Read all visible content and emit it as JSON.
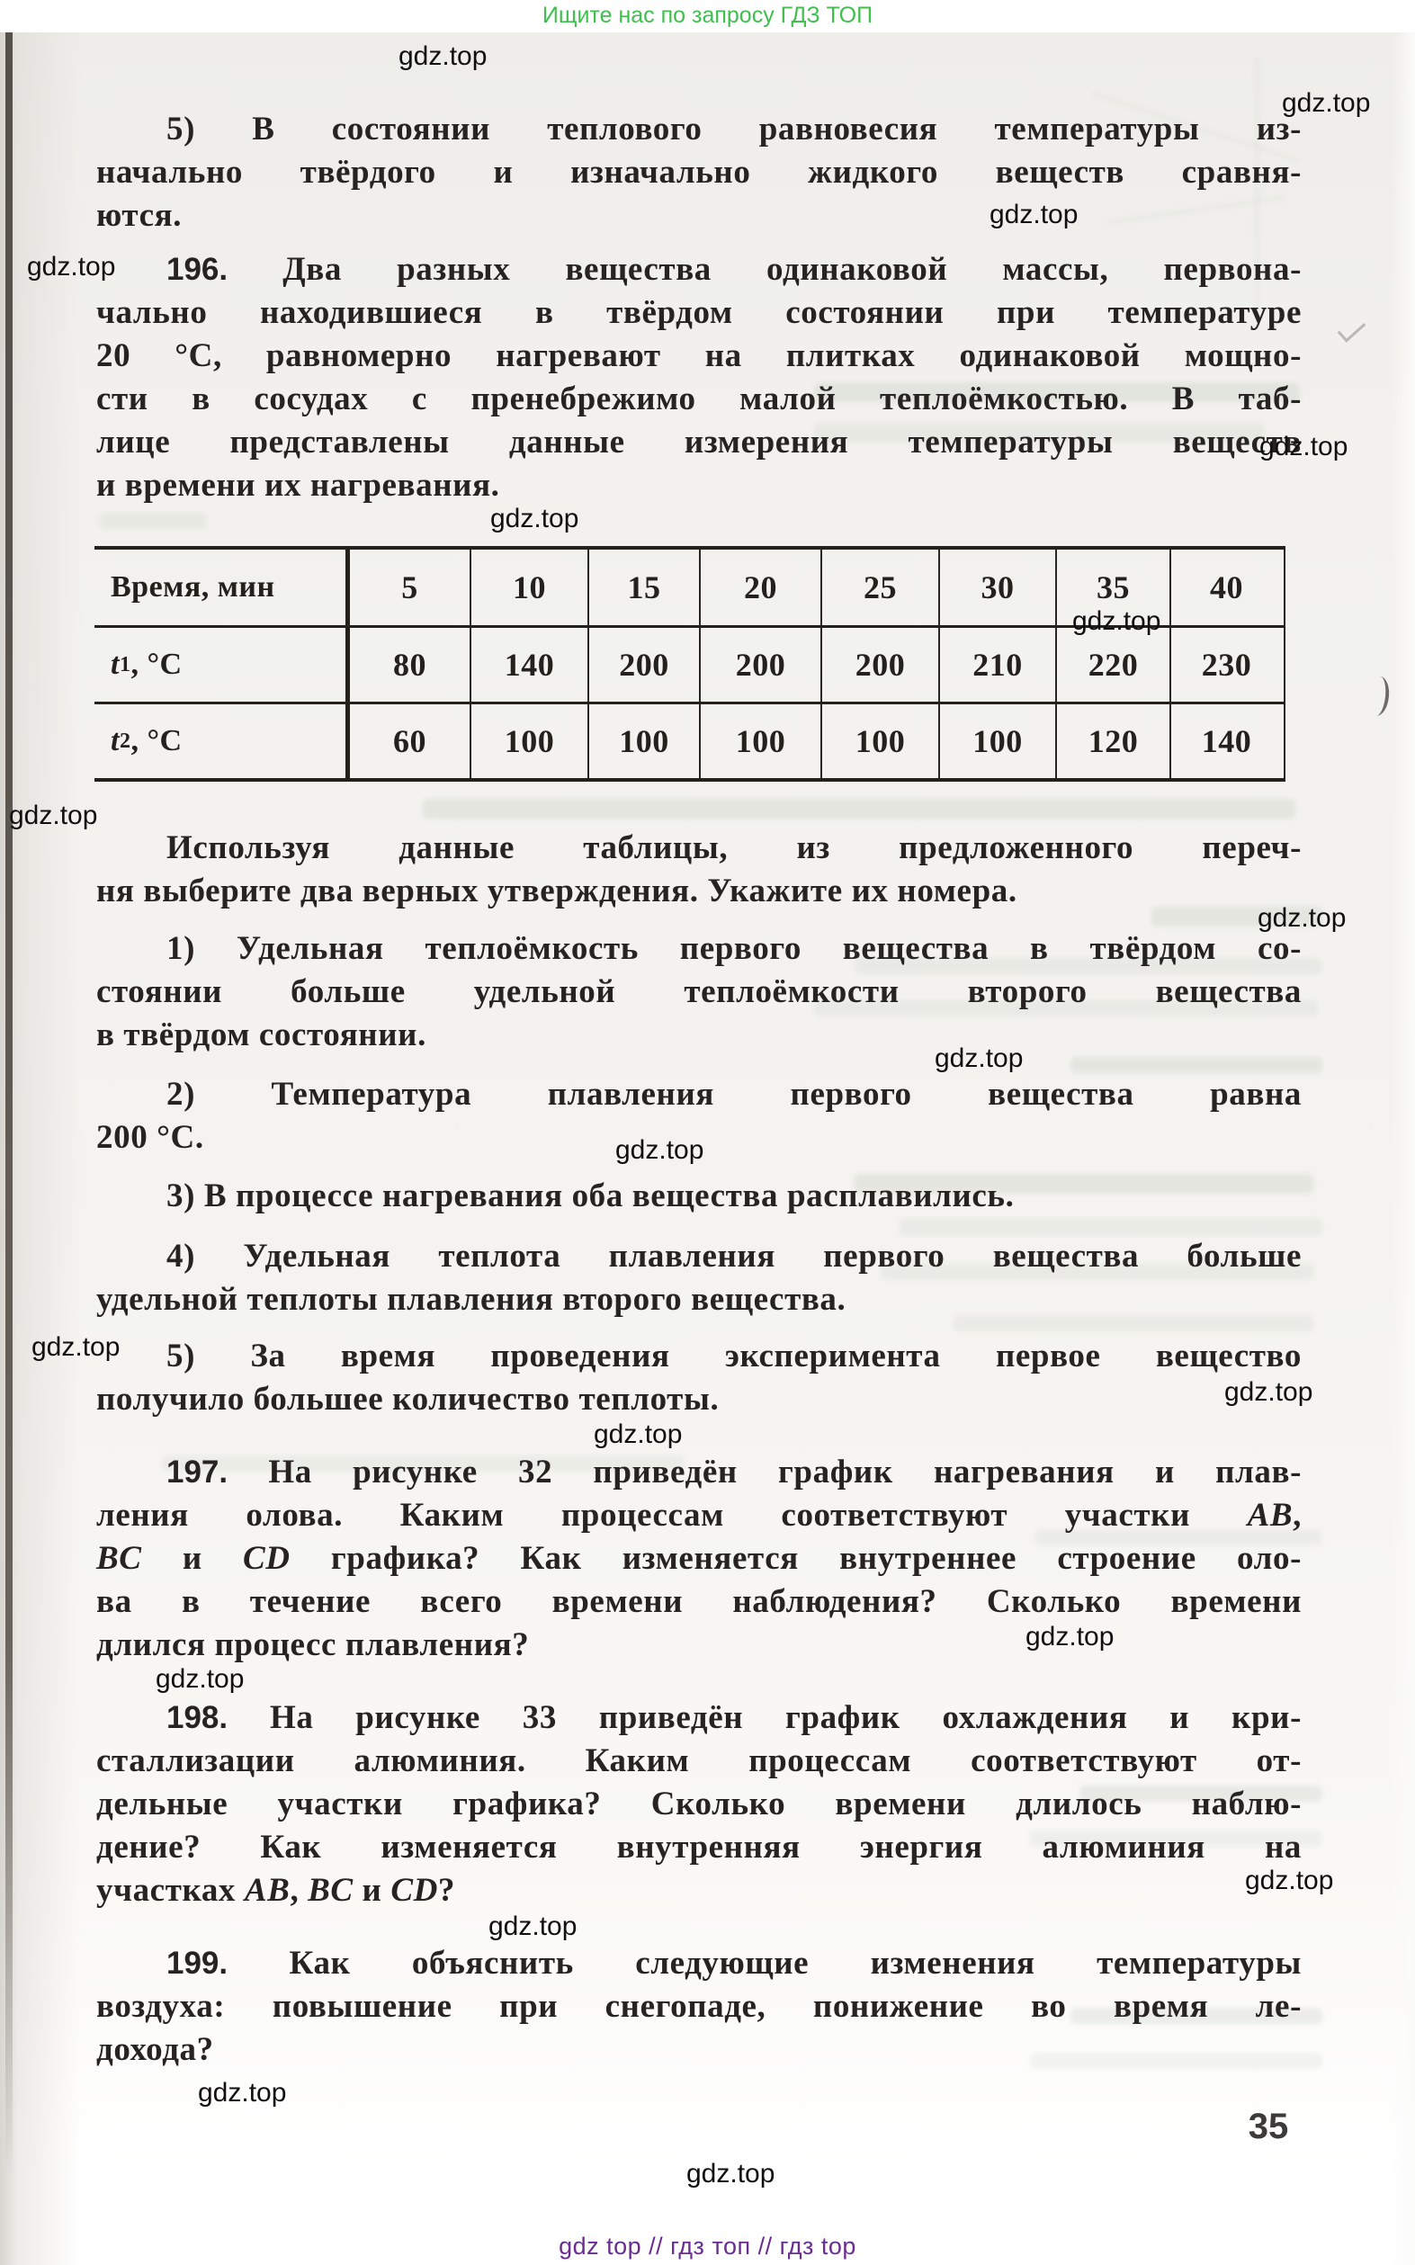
{
  "site_header": {
    "text": "Ищите нас по запросу ГДЗ ТОП",
    "color": "#3fbf4d"
  },
  "watermark": {
    "label": "gdz.top"
  },
  "page": {
    "number": "35"
  },
  "paragraphs": {
    "statement5_intro": {
      "lines": [
        "5) В состоянии теплового равновесия температуры из-",
        "начально твёрдого и изначально жидкого веществ сравня-",
        "ются."
      ]
    },
    "problem196": {
      "lines": [
        "196. Два разных вещества одинаковой массы, первона-",
        "чально находившиеся в твёрдом состоянии при температуре",
        "20 °С, равномерно нагревают на плитках одинаковой мощно-",
        "сти в сосудах с пренебрежимо малой теплоёмкостью. В таб-",
        "лице представлены данные измерения температуры веществ",
        "и времени их нагревания."
      ]
    },
    "table_intro": {
      "lines": [
        "Используя данные таблицы, из предложенного переч-",
        "ня выберите два верных утверждения. Укажите их номера."
      ]
    },
    "statements": [
      {
        "lines": [
          "1) Удельная теплоёмкость первого вещества в твёрдом со-",
          "стоянии больше удельной теплоёмкости второго вещества",
          "в твёрдом состоянии."
        ]
      },
      {
        "lines": [
          "2) Температура плавления первого вещества равна",
          "200 °С."
        ]
      },
      {
        "lines": [
          "3) В процессе нагревания оба вещества расплавились."
        ]
      },
      {
        "lines": [
          "4) Удельная теплота плавления первого вещества больше",
          "удельной теплоты плавления второго вещества."
        ]
      },
      {
        "lines": [
          "5) За время проведения эксперимента первое вещество",
          "получило большее количество теплоты."
        ]
      }
    ],
    "problem197": {
      "lines": [
        "197. На рисунке 32 приведён график нагревания и плав-",
        "ления олова. Каким процессам соответствуют участки AB,",
        "BC и CD графика? Как изменяется внутреннее строение оло-",
        "ва в течение всего времени наблюдения? Сколько времени",
        "длился процесс плавления?"
      ]
    },
    "problem198": {
      "lines": [
        "198. На рисунке 33 приведён график охлаждения и кри-",
        "сталлизации алюминия. Каким процессам соответствуют от-",
        "дельные участки графика? Сколько времени длилось наблю-",
        "дение? Как изменяется внутренняя энергия алюминия на",
        "участках AB, BC и CD?"
      ]
    },
    "problem199": {
      "lines": [
        "199. Как объяснить следующие изменения температуры",
        "воздуха: повышение при снегопаде, понижение во время ле-",
        "дохода?"
      ]
    }
  },
  "table": {
    "header_row": {
      "label": "Время, мин",
      "values": [
        "5",
        "10",
        "15",
        "20",
        "25",
        "30",
        "35",
        "40"
      ]
    },
    "rows": [
      {
        "label": "t1, °C",
        "values": [
          "80",
          "140",
          "200",
          "200",
          "200",
          "210",
          "220",
          "230"
        ]
      },
      {
        "label": "t2, °C",
        "values": [
          "60",
          "100",
          "100",
          "100",
          "100",
          "100",
          "120",
          "140"
        ]
      }
    ]
  },
  "footer": {
    "text": "gdz top  //  гдз топ  //  гдз top",
    "color": "#6b2d92"
  }
}
